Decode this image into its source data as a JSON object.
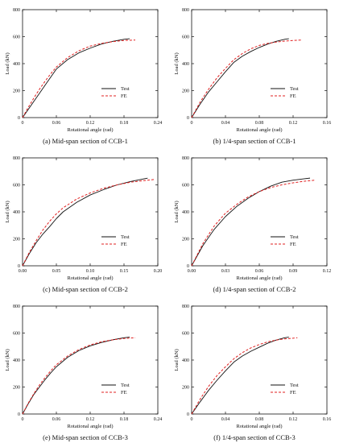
{
  "chart_data": [
    {
      "type": "line",
      "caption": "(a) Mid-span section of CCB-1",
      "xlabel": "Rotational angle (rad)",
      "ylabel": "Load (kN)",
      "xlim": [
        0,
        0.24
      ],
      "ylim": [
        0,
        800
      ],
      "xticks": [
        "0",
        "0.06",
        "0.12",
        "0.18",
        "0.24"
      ],
      "yticks": [
        "0",
        "200",
        "400",
        "600",
        "800"
      ],
      "legend_position": "lower-right",
      "series": [
        {
          "name": "Test",
          "color": "#111111",
          "dash": "solid",
          "x": [
            0,
            0.01,
            0.02,
            0.03,
            0.04,
            0.05,
            0.06,
            0.08,
            0.1,
            0.12,
            0.14,
            0.16,
            0.18,
            0.19
          ],
          "y": [
            0,
            60,
            120,
            180,
            240,
            300,
            360,
            430,
            480,
            515,
            545,
            565,
            580,
            585
          ]
        },
        {
          "name": "FE",
          "color": "#e02020",
          "dash": "dashed",
          "x": [
            0,
            0.01,
            0.02,
            0.03,
            0.04,
            0.05,
            0.06,
            0.08,
            0.1,
            0.12,
            0.14,
            0.16,
            0.18,
            0.2
          ],
          "y": [
            0,
            75,
            145,
            210,
            270,
            325,
            375,
            445,
            495,
            530,
            550,
            563,
            572,
            575
          ]
        }
      ]
    },
    {
      "type": "line",
      "caption": "(b) 1/4-span section of CCB-1",
      "xlabel": "Rotational angle (rad)",
      "ylabel": "Load (kN)",
      "xlim": [
        0,
        0.16
      ],
      "ylim": [
        0,
        800
      ],
      "xticks": [
        "0",
        "0.04",
        "0.08",
        "0.12",
        "0.16"
      ],
      "yticks": [
        "0",
        "200",
        "400",
        "600",
        "800"
      ],
      "legend_position": "lower-right",
      "series": [
        {
          "name": "Test",
          "color": "#111111",
          "dash": "solid",
          "x": [
            0,
            0.01,
            0.02,
            0.03,
            0.04,
            0.05,
            0.06,
            0.07,
            0.08,
            0.09,
            0.1,
            0.11,
            0.115
          ],
          "y": [
            0,
            100,
            190,
            265,
            340,
            410,
            455,
            490,
            520,
            545,
            565,
            580,
            585
          ]
        },
        {
          "name": "FE",
          "color": "#e02020",
          "dash": "dashed",
          "x": [
            0,
            0.01,
            0.02,
            0.03,
            0.04,
            0.05,
            0.06,
            0.07,
            0.08,
            0.09,
            0.1,
            0.11,
            0.12,
            0.13
          ],
          "y": [
            0,
            115,
            210,
            295,
            365,
            430,
            475,
            510,
            535,
            550,
            560,
            567,
            572,
            575
          ]
        }
      ]
    },
    {
      "type": "line",
      "caption": "(c) Mid-span section of CCB-2",
      "xlabel": "Rotational angle (rad)",
      "ylabel": "Load (kN)",
      "xlim": [
        0,
        0.2
      ],
      "ylim": [
        0,
        800
      ],
      "xticks": [
        "0.00",
        "0.05",
        "0.10",
        "0.15",
        "0.20"
      ],
      "yticks": [
        "0",
        "200",
        "400",
        "600",
        "800"
      ],
      "legend_position": "lower-right",
      "series": [
        {
          "name": "Test",
          "color": "#111111",
          "dash": "solid",
          "x": [
            0,
            0.01,
            0.02,
            0.03,
            0.04,
            0.05,
            0.06,
            0.08,
            0.1,
            0.12,
            0.14,
            0.16,
            0.18,
            0.185
          ],
          "y": [
            0,
            90,
            170,
            235,
            290,
            350,
            400,
            470,
            525,
            565,
            600,
            625,
            645,
            650
          ]
        },
        {
          "name": "FE",
          "color": "#e02020",
          "dash": "dashed",
          "x": [
            0,
            0.01,
            0.02,
            0.03,
            0.04,
            0.05,
            0.06,
            0.08,
            0.1,
            0.12,
            0.14,
            0.16,
            0.18,
            0.195
          ],
          "y": [
            0,
            100,
            185,
            265,
            330,
            385,
            430,
            495,
            540,
            575,
            600,
            620,
            632,
            640
          ]
        }
      ]
    },
    {
      "type": "line",
      "caption": "(d) 1/4-span section of CCB-2",
      "xlabel": "Rotational angle (rad)",
      "ylabel": "Load (kN)",
      "xlim": [
        0,
        0.12
      ],
      "ylim": [
        0,
        800
      ],
      "xticks": [
        "0.00",
        "0.03",
        "0.06",
        "0.09",
        "0.12"
      ],
      "yticks": [
        "0",
        "200",
        "400",
        "600",
        "800"
      ],
      "legend_position": "lower-right",
      "series": [
        {
          "name": "Test",
          "color": "#111111",
          "dash": "solid",
          "x": [
            0,
            0.01,
            0.02,
            0.03,
            0.04,
            0.05,
            0.06,
            0.07,
            0.08,
            0.09,
            0.1,
            0.105
          ],
          "y": [
            0,
            150,
            270,
            365,
            440,
            500,
            550,
            590,
            620,
            635,
            645,
            650
          ]
        },
        {
          "name": "FE",
          "color": "#e02020",
          "dash": "dashed",
          "x": [
            0,
            0.01,
            0.02,
            0.03,
            0.04,
            0.05,
            0.06,
            0.07,
            0.08,
            0.09,
            0.1,
            0.11
          ],
          "y": [
            0,
            165,
            295,
            390,
            455,
            510,
            550,
            580,
            600,
            615,
            627,
            635
          ]
        }
      ]
    },
    {
      "type": "line",
      "caption": "(e) Mid-span section of CCB-3",
      "xlabel": "Rotational angle (rad)",
      "ylabel": "Load (kN)",
      "xlim": [
        0,
        0.24
      ],
      "ylim": [
        0,
        800
      ],
      "xticks": [
        "0",
        "0.06",
        "0.12",
        "0.18",
        "0.24"
      ],
      "yticks": [
        "0",
        "200",
        "400",
        "600",
        "800"
      ],
      "legend_position": "lower-right",
      "series": [
        {
          "name": "Test",
          "color": "#111111",
          "dash": "solid",
          "x": [
            0,
            0.01,
            0.02,
            0.03,
            0.04,
            0.05,
            0.06,
            0.08,
            0.1,
            0.12,
            0.14,
            0.16,
            0.18,
            0.19
          ],
          "y": [
            0,
            75,
            145,
            200,
            255,
            305,
            350,
            420,
            470,
            505,
            530,
            550,
            565,
            570
          ]
        },
        {
          "name": "FE",
          "color": "#e02020",
          "dash": "dashed",
          "x": [
            0,
            0.01,
            0.02,
            0.03,
            0.04,
            0.05,
            0.06,
            0.08,
            0.1,
            0.12,
            0.14,
            0.16,
            0.18,
            0.2
          ],
          "y": [
            0,
            80,
            150,
            215,
            270,
            320,
            365,
            430,
            478,
            512,
            535,
            550,
            560,
            565
          ]
        }
      ]
    },
    {
      "type": "line",
      "caption": "(f) 1/4-span section of CCB-3",
      "xlabel": "Rotational angle (rad)",
      "ylabel": "Load (kN)",
      "xlim": [
        0,
        0.16
      ],
      "ylim": [
        0,
        800
      ],
      "xticks": [
        "0",
        "0.04",
        "0.08",
        "0.12",
        "0.16"
      ],
      "yticks": [
        "0",
        "200",
        "400",
        "600",
        "800"
      ],
      "legend_position": "lower-right",
      "series": [
        {
          "name": "Test",
          "color": "#111111",
          "dash": "solid",
          "x": [
            0,
            0.01,
            0.02,
            0.03,
            0.04,
            0.05,
            0.06,
            0.07,
            0.08,
            0.09,
            0.1,
            0.11,
            0.115
          ],
          "y": [
            0,
            90,
            175,
            250,
            320,
            385,
            430,
            465,
            495,
            525,
            548,
            565,
            570
          ]
        },
        {
          "name": "FE",
          "color": "#e02020",
          "dash": "dashed",
          "x": [
            0,
            0.01,
            0.02,
            0.03,
            0.04,
            0.05,
            0.06,
            0.07,
            0.08,
            0.09,
            0.1,
            0.11,
            0.12,
            0.125
          ],
          "y": [
            0,
            110,
            205,
            285,
            350,
            410,
            455,
            490,
            515,
            535,
            548,
            557,
            562,
            565
          ]
        }
      ]
    }
  ]
}
